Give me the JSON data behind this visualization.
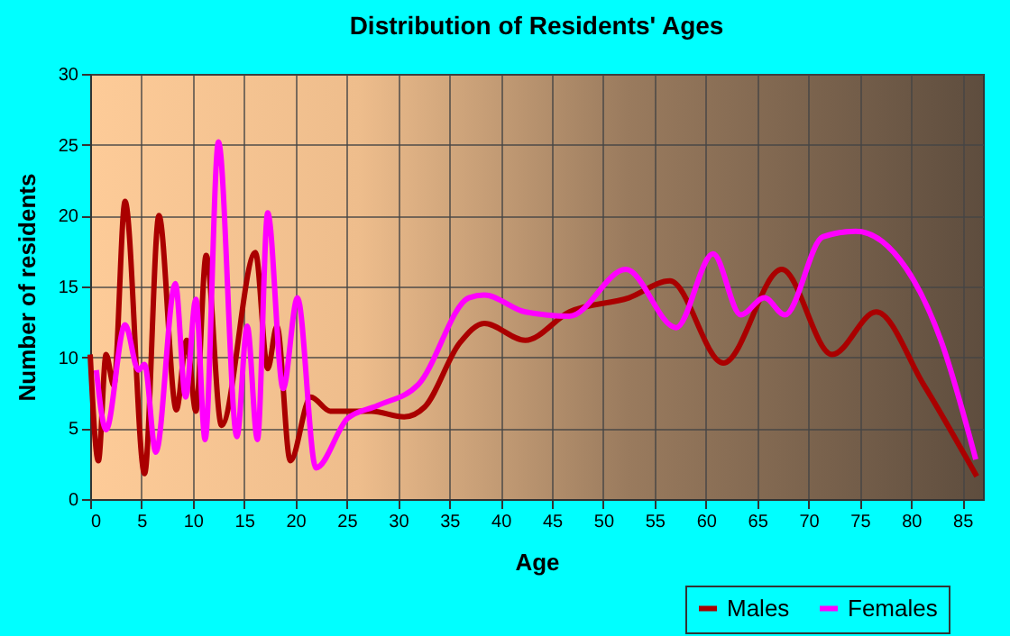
{
  "chart_data": {
    "type": "line",
    "title": "Distribution of Residents' Ages",
    "xlabel": "Age",
    "ylabel": "Number of residents",
    "xlim": [
      0,
      87
    ],
    "xticks": [
      0,
      5,
      10,
      15,
      20,
      25,
      30,
      35,
      40,
      45,
      50,
      55,
      60,
      65,
      70,
      75,
      80,
      85
    ],
    "ylim": [
      0,
      30
    ],
    "yticks": [
      0,
      5,
      10,
      15,
      20,
      25,
      30
    ],
    "grid": true,
    "legend": "bottom right",
    "marker": "none",
    "line_style": "solid",
    "series": [
      {
        "name": "Males",
        "color": "#aa0000",
        "x": [
          0,
          0.8,
          1.55,
          2.3,
          3.4,
          5.3,
          6.7,
          8.4,
          9.4,
          10.3,
          11.3,
          12.8,
          16.1,
          17.3,
          18.2,
          19.5,
          21.5,
          23.4,
          27.4,
          30.6,
          32.6,
          36,
          38.4,
          42.4,
          46.7,
          52.5,
          56.5,
          61.7,
          67.4,
          72.3,
          76.6,
          81.2,
          86.4
        ],
        "values": [
          10.2,
          2.7,
          10.2,
          8,
          21,
          1.8,
          20,
          6.3,
          11.2,
          6.2,
          17.2,
          5.2,
          17.4,
          9.2,
          12.2,
          2.7,
          7.2,
          6.2,
          6.2,
          5.8,
          6.5,
          11,
          12.4,
          11.2,
          13.2,
          14.2,
          15.4,
          9.6,
          16.2,
          10.2,
          13.2,
          8.1,
          1.6
        ]
      },
      {
        "name": "Females",
        "color": "#ff00ff",
        "x": [
          0.6,
          1.55,
          3.4,
          4.7,
          5.3,
          6.4,
          8.3,
          9.3,
          10.3,
          11.2,
          12.5,
          14.3,
          15.3,
          16.3,
          17.3,
          18.8,
          20.2,
          22,
          25.1,
          28,
          32,
          36.9,
          38.4,
          42.4,
          46.7,
          52.2,
          57.1,
          60.7,
          63.4,
          65.7,
          67.7,
          71.4,
          74.6,
          79.5,
          82.9,
          86.3
        ],
        "values": [
          9.1,
          4.9,
          12.3,
          9.1,
          9.5,
          3.3,
          15.2,
          7.2,
          14.1,
          4.2,
          25.2,
          4.4,
          12.2,
          4.2,
          20.2,
          7.8,
          14.2,
          2.2,
          5.7,
          6.6,
          8.1,
          14.2,
          14.4,
          13.2,
          12.9,
          16.2,
          12.1,
          17.3,
          13,
          14.2,
          13,
          18.5,
          18.9,
          16.3,
          11.2,
          2.8
        ]
      }
    ]
  }
}
